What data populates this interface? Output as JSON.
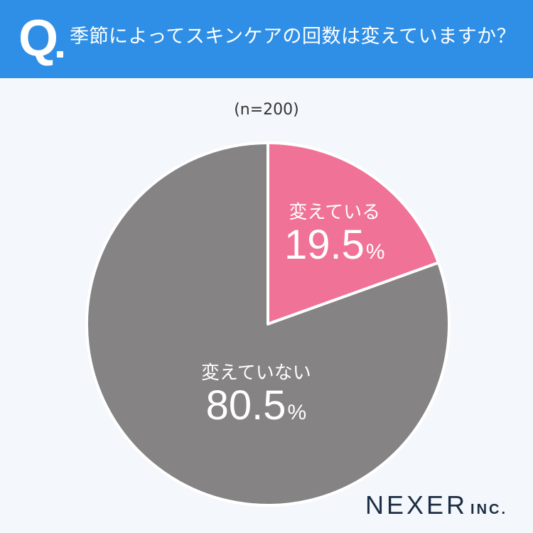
{
  "header": {
    "q_label": "Q",
    "question": "季節によってスキンケアの回数は変えていますか？"
  },
  "chart_data": {
    "type": "pie",
    "note": "(n=200)",
    "slices": [
      {
        "label": "変えている",
        "value": 19.5,
        "value_text": "19.5",
        "unit": "%",
        "color": "#f07297"
      },
      {
        "label": "変えていない",
        "value": 80.5,
        "value_text": "80.5",
        "unit": "%",
        "color": "#858384"
      }
    ]
  },
  "brand": {
    "name": "NEXER",
    "suffix": "INC."
  }
}
